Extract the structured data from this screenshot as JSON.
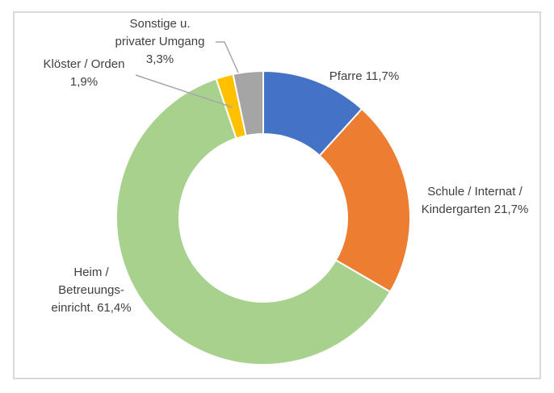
{
  "window": {
    "background": "#ffffff",
    "frame_border_color": "#d9d9d9"
  },
  "chart_data": {
    "type": "pie",
    "subtype": "donut",
    "title": "",
    "categories": [
      "Pfarre",
      "Schule / Internat / Kindergarten",
      "Heim / Betreuungseinricht.",
      "Klöster / Orden",
      "Sonstige u. privater Umgang"
    ],
    "values": [
      11.7,
      21.7,
      61.4,
      1.9,
      3.3
    ],
    "colors": [
      "#4472c4",
      "#ed7d31",
      "#a9d18e",
      "#ffc000",
      "#a5a5a5"
    ],
    "start_angle_deg": 0,
    "direction": "clockwise",
    "hole_ratio": 0.57,
    "segment_gap_color": "#ffffff",
    "legend": "none",
    "label_color": "#404040",
    "leader_line_color": "#a6a6a6",
    "labels": {
      "pfarre": {
        "lines": [
          "Pfarre 11,7%"
        ]
      },
      "schule": {
        "lines": [
          "Schule / Internat /",
          "Kindergarten 21,7%"
        ]
      },
      "heim": {
        "lines": [
          "Heim /",
          "Betreuungs-",
          "einricht. 61,4%"
        ]
      },
      "kloester": {
        "lines": [
          "Klöster / Orden",
          "1,9%"
        ]
      },
      "sonstige": {
        "lines": [
          "Sonstige u.",
          "privater Umgang",
          "3,3%"
        ]
      }
    }
  }
}
